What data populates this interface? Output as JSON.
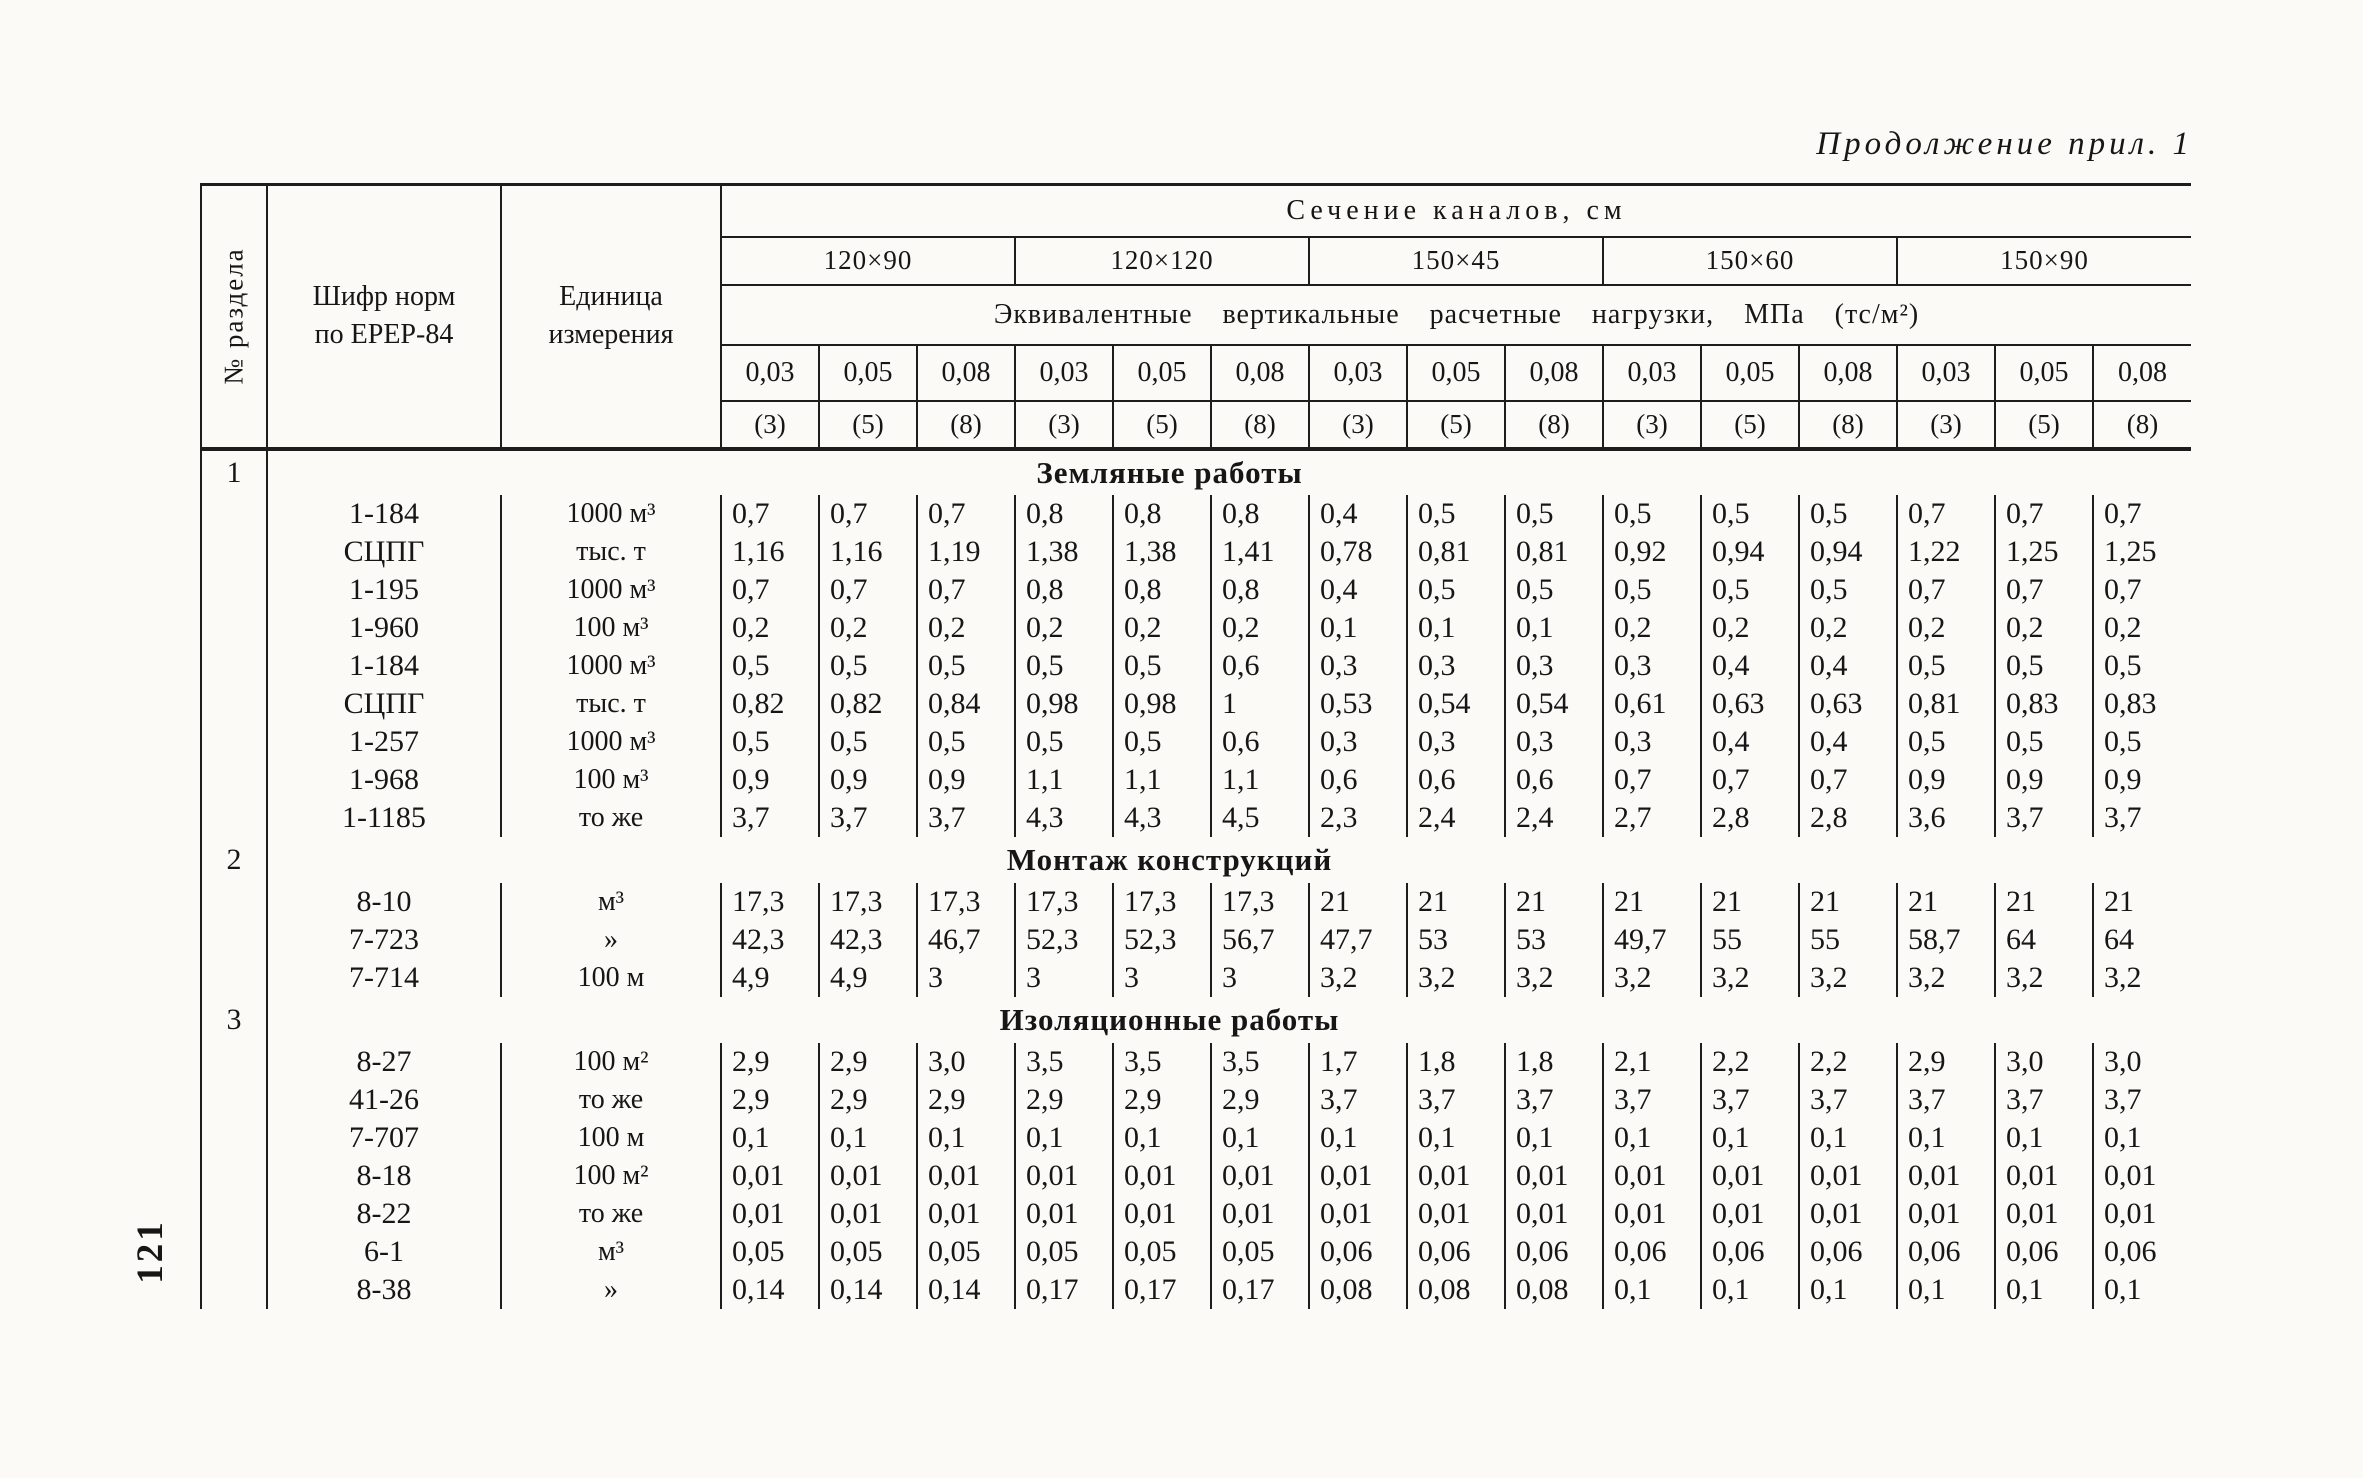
{
  "page": {
    "continuation_note": "Продолжение прил. 1",
    "page_number": "121"
  },
  "table": {
    "corner": {
      "section_col": "№ раздела",
      "code_col": "Шифр норм\nпо ЕРЕР-84",
      "unit_col": "Единица\nизмерения"
    },
    "header": {
      "span_title": "Сечение каналов, см",
      "sizes": [
        "120×90",
        "120×120",
        "150×45",
        "150×60",
        "150×90"
      ],
      "loads_title": "Эквивалентные вертикальные расчетные нагрузки, МПа (тс/м²)",
      "loads_mpa": [
        "0,03",
        "0,05",
        "0,08"
      ],
      "loads_alt": [
        "(3)",
        "(5)",
        "(8)"
      ]
    },
    "groups": [
      {
        "number": "1",
        "title": "Земляные работы",
        "rows": [
          {
            "code": "1-184",
            "unit": "1000 м³",
            "values": [
              "0,7",
              "0,7",
              "0,7",
              "0,8",
              "0,8",
              "0,8",
              "0,4",
              "0,5",
              "0,5",
              "0,5",
              "0,5",
              "0,5",
              "0,7",
              "0,7",
              "0,7"
            ]
          },
          {
            "code": "СЦПГ",
            "unit": "тыс. т",
            "values": [
              "1,16",
              "1,16",
              "1,19",
              "1,38",
              "1,38",
              "1,41",
              "0,78",
              "0,81",
              "0,81",
              "0,92",
              "0,94",
              "0,94",
              "1,22",
              "1,25",
              "1,25"
            ]
          },
          {
            "code": "1-195",
            "unit": "1000 м³",
            "values": [
              "0,7",
              "0,7",
              "0,7",
              "0,8",
              "0,8",
              "0,8",
              "0,4",
              "0,5",
              "0,5",
              "0,5",
              "0,5",
              "0,5",
              "0,7",
              "0,7",
              "0,7"
            ]
          },
          {
            "code": "1-960",
            "unit": "100 м³",
            "values": [
              "0,2",
              "0,2",
              "0,2",
              "0,2",
              "0,2",
              "0,2",
              "0,1",
              "0,1",
              "0,1",
              "0,2",
              "0,2",
              "0,2",
              "0,2",
              "0,2",
              "0,2"
            ]
          },
          {
            "code": "1-184",
            "unit": "1000 м³",
            "values": [
              "0,5",
              "0,5",
              "0,5",
              "0,5",
              "0,5",
              "0,6",
              "0,3",
              "0,3",
              "0,3",
              "0,3",
              "0,4",
              "0,4",
              "0,5",
              "0,5",
              "0,5"
            ]
          },
          {
            "code": "СЦПГ",
            "unit": "тыс. т",
            "values": [
              "0,82",
              "0,82",
              "0,84",
              "0,98",
              "0,98",
              "1",
              "0,53",
              "0,54",
              "0,54",
              "0,61",
              "0,63",
              "0,63",
              "0,81",
              "0,83",
              "0,83"
            ]
          },
          {
            "code": "1-257",
            "unit": "1000 м³",
            "values": [
              "0,5",
              "0,5",
              "0,5",
              "0,5",
              "0,5",
              "0,6",
              "0,3",
              "0,3",
              "0,3",
              "0,3",
              "0,4",
              "0,4",
              "0,5",
              "0,5",
              "0,5"
            ]
          },
          {
            "code": "1-968",
            "unit": "100 м³",
            "values": [
              "0,9",
              "0,9",
              "0,9",
              "1,1",
              "1,1",
              "1,1",
              "0,6",
              "0,6",
              "0,6",
              "0,7",
              "0,7",
              "0,7",
              "0,9",
              "0,9",
              "0,9"
            ]
          },
          {
            "code": "1-1185",
            "unit": "то же",
            "values": [
              "3,7",
              "3,7",
              "3,7",
              "4,3",
              "4,3",
              "4,5",
              "2,3",
              "2,4",
              "2,4",
              "2,7",
              "2,8",
              "2,8",
              "3,6",
              "3,7",
              "3,7"
            ]
          }
        ]
      },
      {
        "number": "2",
        "title": "Монтаж конструкций",
        "rows": [
          {
            "code": "8-10",
            "unit": "м³",
            "values": [
              "17,3",
              "17,3",
              "17,3",
              "17,3",
              "17,3",
              "17,3",
              "21",
              "21",
              "21",
              "21",
              "21",
              "21",
              "21",
              "21",
              "21"
            ]
          },
          {
            "code": "7-723",
            "unit": "»",
            "values": [
              "42,3",
              "42,3",
              "46,7",
              "52,3",
              "52,3",
              "56,7",
              "47,7",
              "53",
              "53",
              "49,7",
              "55",
              "55",
              "58,7",
              "64",
              "64"
            ]
          },
          {
            "code": "7-714",
            "unit": "100 м",
            "values": [
              "4,9",
              "4,9",
              "3",
              "3",
              "3",
              "3",
              "3,2",
              "3,2",
              "3,2",
              "3,2",
              "3,2",
              "3,2",
              "3,2",
              "3,2",
              "3,2"
            ]
          }
        ]
      },
      {
        "number": "3",
        "title": "Изоляционные работы",
        "rows": [
          {
            "code": "8-27",
            "unit": "100 м²",
            "values": [
              "2,9",
              "2,9",
              "3,0",
              "3,5",
              "3,5",
              "3,5",
              "1,7",
              "1,8",
              "1,8",
              "2,1",
              "2,2",
              "2,2",
              "2,9",
              "3,0",
              "3,0"
            ]
          },
          {
            "code": "41-26",
            "unit": "то же",
            "values": [
              "2,9",
              "2,9",
              "2,9",
              "2,9",
              "2,9",
              "2,9",
              "3,7",
              "3,7",
              "3,7",
              "3,7",
              "3,7",
              "3,7",
              "3,7",
              "3,7",
              "3,7"
            ]
          },
          {
            "code": "7-707",
            "unit": "100 м",
            "values": [
              "0,1",
              "0,1",
              "0,1",
              "0,1",
              "0,1",
              "0,1",
              "0,1",
              "0,1",
              "0,1",
              "0,1",
              "0,1",
              "0,1",
              "0,1",
              "0,1",
              "0,1"
            ]
          },
          {
            "code": "8-18",
            "unit": "100 м²",
            "values": [
              "0,01",
              "0,01",
              "0,01",
              "0,01",
              "0,01",
              "0,01",
              "0,01",
              "0,01",
              "0,01",
              "0,01",
              "0,01",
              "0,01",
              "0,01",
              "0,01",
              "0,01"
            ]
          },
          {
            "code": "8-22",
            "unit": "то же",
            "values": [
              "0,01",
              "0,01",
              "0,01",
              "0,01",
              "0,01",
              "0,01",
              "0,01",
              "0,01",
              "0,01",
              "0,01",
              "0,01",
              "0,01",
              "0,01",
              "0,01",
              "0,01"
            ]
          },
          {
            "code": "6-1",
            "unit": "м³",
            "values": [
              "0,05",
              "0,05",
              "0,05",
              "0,05",
              "0,05",
              "0,05",
              "0,06",
              "0,06",
              "0,06",
              "0,06",
              "0,06",
              "0,06",
              "0,06",
              "0,06",
              "0,06"
            ]
          },
          {
            "code": "8-38",
            "unit": "»",
            "values": [
              "0,14",
              "0,14",
              "0,14",
              "0,17",
              "0,17",
              "0,17",
              "0,08",
              "0,08",
              "0,08",
              "0,1",
              "0,1",
              "0,1",
              "0,1",
              "0,1",
              "0,1"
            ]
          }
        ]
      }
    ]
  }
}
